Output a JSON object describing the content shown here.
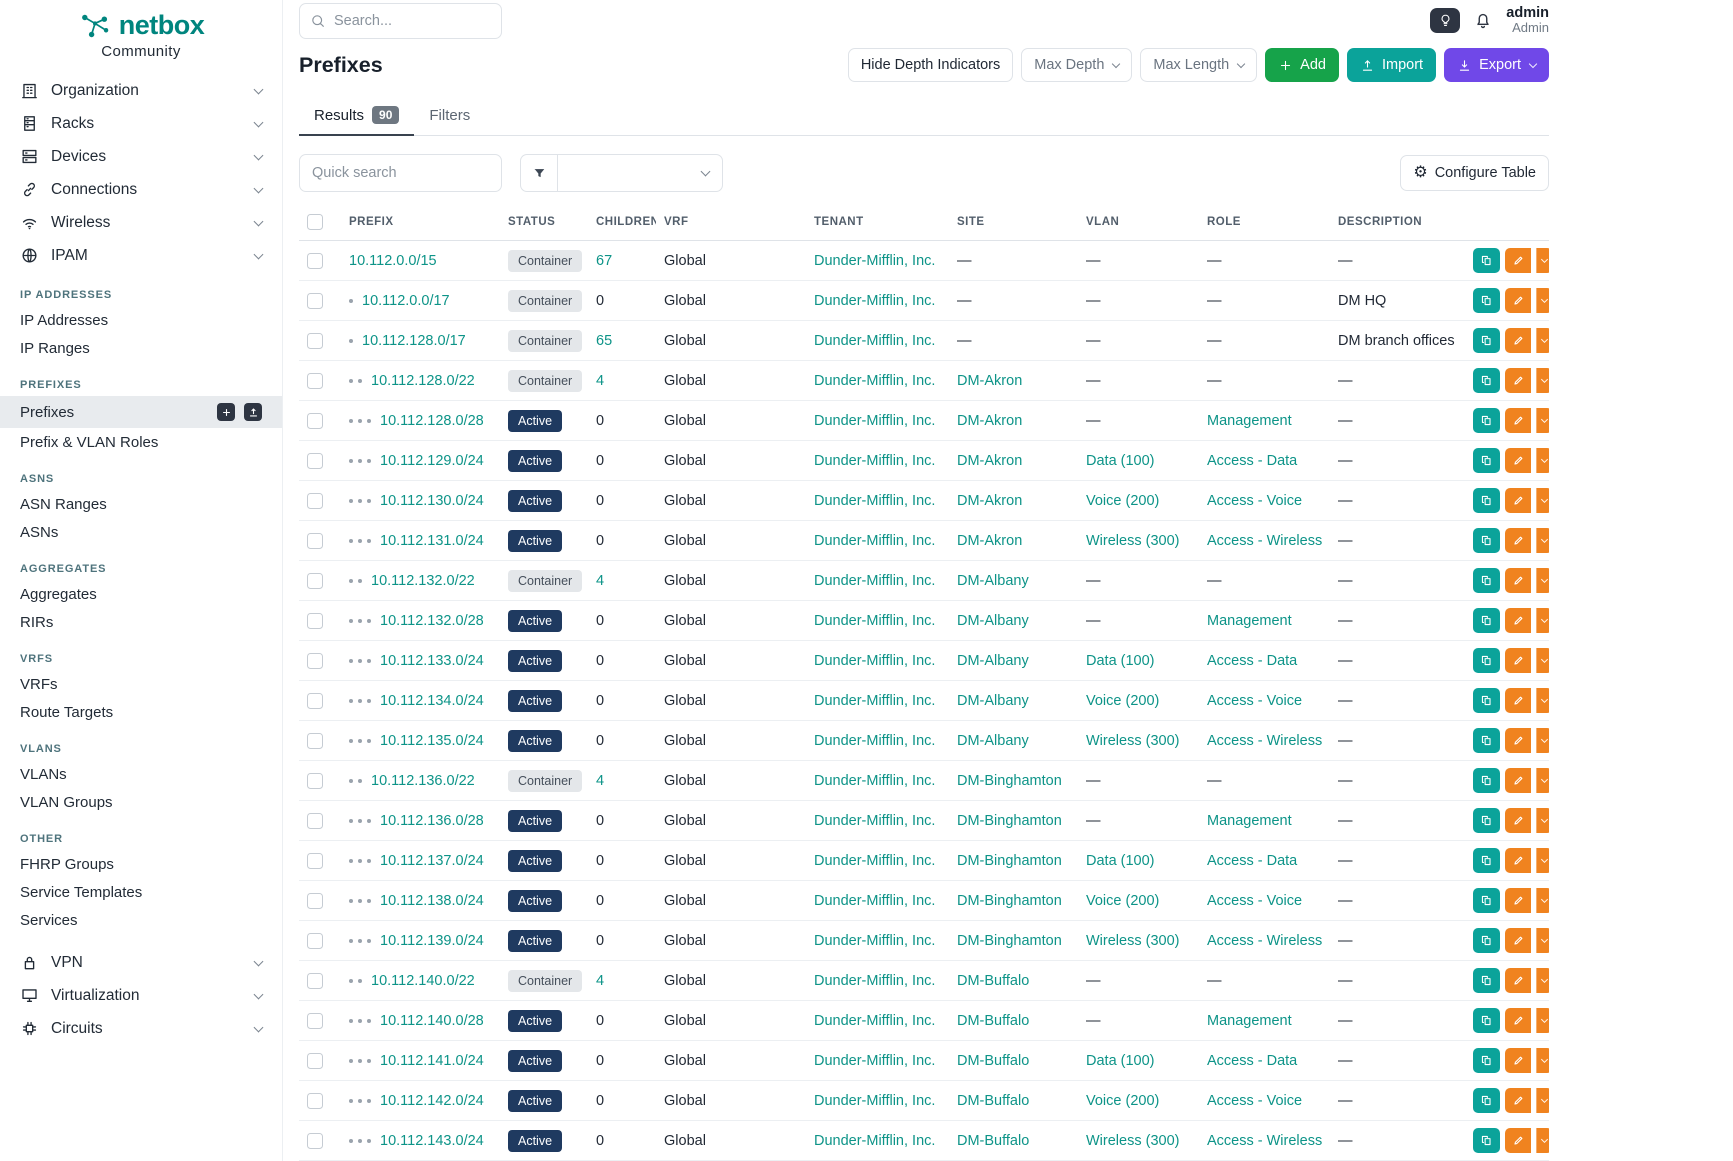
{
  "colors": {
    "brand_teal": "#00857e",
    "link_teal": "#0d9488",
    "add_green": "#16a34a",
    "import_teal": "#0ba39a",
    "export_purple": "#7048e8",
    "edit_orange": "#f0831f",
    "active_badge_bg": "#1f3a60",
    "container_badge_bg": "#e4e7ea"
  },
  "brand": {
    "name": "netbox",
    "subtitle": "Community",
    "logo_icon": "netbox-logo-icon"
  },
  "topbar": {
    "search_placeholder": "Search...",
    "theme_toggle_icon": "lightbulb-icon",
    "notifications_icon": "bell-icon",
    "user_name": "admin",
    "user_role": "Admin"
  },
  "sidebar": {
    "top_items": [
      {
        "label": "Organization",
        "icon": "building-icon"
      },
      {
        "label": "Racks",
        "icon": "rack-icon"
      },
      {
        "label": "Devices",
        "icon": "server-icon"
      },
      {
        "label": "Connections",
        "icon": "cable-icon"
      },
      {
        "label": "Wireless",
        "icon": "wifi-icon"
      },
      {
        "label": "IPAM",
        "icon": "ipam-icon"
      }
    ],
    "sections": [
      {
        "heading": "IP ADDRESSES",
        "items": [
          {
            "label": "IP Addresses"
          },
          {
            "label": "IP Ranges"
          }
        ]
      },
      {
        "heading": "PREFIXES",
        "items": [
          {
            "label": "Prefixes",
            "active": true,
            "actions": [
              "plus-icon",
              "import-icon"
            ]
          },
          {
            "label": "Prefix & VLAN Roles"
          }
        ]
      },
      {
        "heading": "ASNS",
        "items": [
          {
            "label": "ASN Ranges"
          },
          {
            "label": "ASNs"
          }
        ]
      },
      {
        "heading": "AGGREGATES",
        "items": [
          {
            "label": "Aggregates"
          },
          {
            "label": "RIRs"
          }
        ]
      },
      {
        "heading": "VRFS",
        "items": [
          {
            "label": "VRFs"
          },
          {
            "label": "Route Targets"
          }
        ]
      },
      {
        "heading": "VLANS",
        "items": [
          {
            "label": "VLANs"
          },
          {
            "label": "VLAN Groups"
          }
        ]
      },
      {
        "heading": "OTHER",
        "items": [
          {
            "label": "FHRP Groups"
          },
          {
            "label": "Service Templates"
          },
          {
            "label": "Services"
          }
        ]
      }
    ],
    "bottom_items": [
      {
        "label": "VPN",
        "icon": "lock-icon"
      },
      {
        "label": "Virtualization",
        "icon": "monitor-icon"
      },
      {
        "label": "Circuits",
        "icon": "circuit-icon"
      }
    ]
  },
  "page": {
    "title": "Prefixes",
    "toolbar": {
      "hide_depth_label": "Hide Depth Indicators",
      "max_depth_label": "Max Depth",
      "max_length_label": "Max Length",
      "add_label": "Add",
      "import_label": "Import",
      "export_label": "Export"
    },
    "tabs": [
      {
        "label": "Results",
        "badge": "90",
        "active": true
      },
      {
        "label": "Filters"
      }
    ],
    "quick_search_placeholder": "Quick search",
    "configure_table_label": "Configure Table"
  },
  "table": {
    "columns": [
      "PREFIX",
      "STATUS",
      "CHILDREN",
      "VRF",
      "TENANT",
      "SITE",
      "VLAN",
      "ROLE",
      "DESCRIPTION"
    ],
    "empty_value": "—",
    "rows": [
      {
        "depth": 0,
        "prefix": "10.112.0.0/15",
        "status": "Container",
        "children": 67,
        "vrf": "Global",
        "tenant": "Dunder-Mifflin, Inc.",
        "site": null,
        "vlan": null,
        "role": null,
        "description": null
      },
      {
        "depth": 1,
        "prefix": "10.112.0.0/17",
        "status": "Container",
        "children": 0,
        "vrf": "Global",
        "tenant": "Dunder-Mifflin, Inc.",
        "site": null,
        "vlan": null,
        "role": null,
        "description": "DM HQ"
      },
      {
        "depth": 1,
        "prefix": "10.112.128.0/17",
        "status": "Container",
        "children": 65,
        "vrf": "Global",
        "tenant": "Dunder-Mifflin, Inc.",
        "site": null,
        "vlan": null,
        "role": null,
        "description": "DM branch offices"
      },
      {
        "depth": 2,
        "prefix": "10.112.128.0/22",
        "status": "Container",
        "children": 4,
        "vrf": "Global",
        "tenant": "Dunder-Mifflin, Inc.",
        "site": "DM-Akron",
        "vlan": null,
        "role": null,
        "description": null
      },
      {
        "depth": 3,
        "prefix": "10.112.128.0/28",
        "status": "Active",
        "children": 0,
        "vrf": "Global",
        "tenant": "Dunder-Mifflin, Inc.",
        "site": "DM-Akron",
        "vlan": null,
        "role": "Management",
        "description": null
      },
      {
        "depth": 3,
        "prefix": "10.112.129.0/24",
        "status": "Active",
        "children": 0,
        "vrf": "Global",
        "tenant": "Dunder-Mifflin, Inc.",
        "site": "DM-Akron",
        "vlan": "Data (100)",
        "role": "Access - Data",
        "description": null
      },
      {
        "depth": 3,
        "prefix": "10.112.130.0/24",
        "status": "Active",
        "children": 0,
        "vrf": "Global",
        "tenant": "Dunder-Mifflin, Inc.",
        "site": "DM-Akron",
        "vlan": "Voice (200)",
        "role": "Access - Voice",
        "description": null
      },
      {
        "depth": 3,
        "prefix": "10.112.131.0/24",
        "status": "Active",
        "children": 0,
        "vrf": "Global",
        "tenant": "Dunder-Mifflin, Inc.",
        "site": "DM-Akron",
        "vlan": "Wireless (300)",
        "role": "Access - Wireless",
        "description": null
      },
      {
        "depth": 2,
        "prefix": "10.112.132.0/22",
        "status": "Container",
        "children": 4,
        "vrf": "Global",
        "tenant": "Dunder-Mifflin, Inc.",
        "site": "DM-Albany",
        "vlan": null,
        "role": null,
        "description": null
      },
      {
        "depth": 3,
        "prefix": "10.112.132.0/28",
        "status": "Active",
        "children": 0,
        "vrf": "Global",
        "tenant": "Dunder-Mifflin, Inc.",
        "site": "DM-Albany",
        "vlan": null,
        "role": "Management",
        "description": null
      },
      {
        "depth": 3,
        "prefix": "10.112.133.0/24",
        "status": "Active",
        "children": 0,
        "vrf": "Global",
        "tenant": "Dunder-Mifflin, Inc.",
        "site": "DM-Albany",
        "vlan": "Data (100)",
        "role": "Access - Data",
        "description": null
      },
      {
        "depth": 3,
        "prefix": "10.112.134.0/24",
        "status": "Active",
        "children": 0,
        "vrf": "Global",
        "tenant": "Dunder-Mifflin, Inc.",
        "site": "DM-Albany",
        "vlan": "Voice (200)",
        "role": "Access - Voice",
        "description": null
      },
      {
        "depth": 3,
        "prefix": "10.112.135.0/24",
        "status": "Active",
        "children": 0,
        "vrf": "Global",
        "tenant": "Dunder-Mifflin, Inc.",
        "site": "DM-Albany",
        "vlan": "Wireless (300)",
        "role": "Access - Wireless",
        "description": null
      },
      {
        "depth": 2,
        "prefix": "10.112.136.0/22",
        "status": "Container",
        "children": 4,
        "vrf": "Global",
        "tenant": "Dunder-Mifflin, Inc.",
        "site": "DM-Binghamton",
        "vlan": null,
        "role": null,
        "description": null
      },
      {
        "depth": 3,
        "prefix": "10.112.136.0/28",
        "status": "Active",
        "children": 0,
        "vrf": "Global",
        "tenant": "Dunder-Mifflin, Inc.",
        "site": "DM-Binghamton",
        "vlan": null,
        "role": "Management",
        "description": null
      },
      {
        "depth": 3,
        "prefix": "10.112.137.0/24",
        "status": "Active",
        "children": 0,
        "vrf": "Global",
        "tenant": "Dunder-Mifflin, Inc.",
        "site": "DM-Binghamton",
        "vlan": "Data (100)",
        "role": "Access - Data",
        "description": null
      },
      {
        "depth": 3,
        "prefix": "10.112.138.0/24",
        "status": "Active",
        "children": 0,
        "vrf": "Global",
        "tenant": "Dunder-Mifflin, Inc.",
        "site": "DM-Binghamton",
        "vlan": "Voice (200)",
        "role": "Access - Voice",
        "description": null
      },
      {
        "depth": 3,
        "prefix": "10.112.139.0/24",
        "status": "Active",
        "children": 0,
        "vrf": "Global",
        "tenant": "Dunder-Mifflin, Inc.",
        "site": "DM-Binghamton",
        "vlan": "Wireless (300)",
        "role": "Access - Wireless",
        "description": null
      },
      {
        "depth": 2,
        "prefix": "10.112.140.0/22",
        "status": "Container",
        "children": 4,
        "vrf": "Global",
        "tenant": "Dunder-Mifflin, Inc.",
        "site": "DM-Buffalo",
        "vlan": null,
        "role": null,
        "description": null
      },
      {
        "depth": 3,
        "prefix": "10.112.140.0/28",
        "status": "Active",
        "children": 0,
        "vrf": "Global",
        "tenant": "Dunder-Mifflin, Inc.",
        "site": "DM-Buffalo",
        "vlan": null,
        "role": "Management",
        "description": null
      },
      {
        "depth": 3,
        "prefix": "10.112.141.0/24",
        "status": "Active",
        "children": 0,
        "vrf": "Global",
        "tenant": "Dunder-Mifflin, Inc.",
        "site": "DM-Buffalo",
        "vlan": "Data (100)",
        "role": "Access - Data",
        "description": null
      },
      {
        "depth": 3,
        "prefix": "10.112.142.0/24",
        "status": "Active",
        "children": 0,
        "vrf": "Global",
        "tenant": "Dunder-Mifflin, Inc.",
        "site": "DM-Buffalo",
        "vlan": "Voice (200)",
        "role": "Access - Voice",
        "description": null
      },
      {
        "depth": 3,
        "prefix": "10.112.143.0/24",
        "status": "Active",
        "children": 0,
        "vrf": "Global",
        "tenant": "Dunder-Mifflin, Inc.",
        "site": "DM-Buffalo",
        "vlan": "Wireless (300)",
        "role": "Access - Wireless",
        "description": null
      }
    ]
  }
}
